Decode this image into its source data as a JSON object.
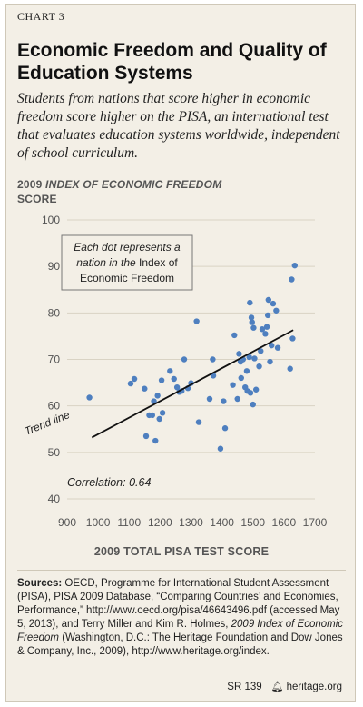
{
  "header": {
    "chart_label": "CHART 3",
    "title": "Economic Freedom and Quality of Education Systems",
    "subtitle": "Students from nations that score higher in economic freedom score higher on the PISA, an international test that evaluates education systems worldwide, independent of school curriculum."
  },
  "axis": {
    "ytitle_prefix": "2009",
    "ytitle_italic": "INDEX OF ECONOMIC FREEDOM",
    "ytitle_suffix": "SCORE",
    "xtitle": "2009 TOTAL PISA TEST SCORE"
  },
  "annotation": {
    "note_line1": "Each dot represents a",
    "note_line2a": "nation in the ",
    "note_line2b": "Index of",
    "note_line3": "Economic Freedom",
    "trend_label": "Trend line",
    "correlation": "Correlation: 0.64"
  },
  "chart_data": {
    "type": "scatter",
    "xlim": [
      900,
      1700
    ],
    "ylim": [
      40,
      100
    ],
    "x_ticks": [
      900,
      1000,
      1100,
      1200,
      1300,
      1400,
      1500,
      1600,
      1700
    ],
    "y_ticks": [
      40,
      50,
      60,
      70,
      80,
      90,
      100
    ],
    "grid": "horizontal",
    "trend_line": [
      [
        980,
        53.2
      ],
      [
        1630,
        76.3
      ]
    ],
    "points": [
      [
        972,
        61.8
      ],
      [
        1105,
        64.8
      ],
      [
        1117,
        65.8
      ],
      [
        1150,
        63.7
      ],
      [
        1155,
        53.5
      ],
      [
        1165,
        58.0
      ],
      [
        1175,
        58.0
      ],
      [
        1180,
        61.0
      ],
      [
        1185,
        52.5
      ],
      [
        1192,
        62.2
      ],
      [
        1198,
        57.2
      ],
      [
        1205,
        65.5
      ],
      [
        1208,
        58.5
      ],
      [
        1232,
        67.5
      ],
      [
        1245,
        65.8
      ],
      [
        1255,
        64.0
      ],
      [
        1262,
        63.0
      ],
      [
        1270,
        63.2
      ],
      [
        1278,
        70.0
      ],
      [
        1290,
        63.8
      ],
      [
        1300,
        64.9
      ],
      [
        1318,
        78.2
      ],
      [
        1325,
        56.5
      ],
      [
        1360,
        61.5
      ],
      [
        1370,
        70.0
      ],
      [
        1372,
        66.5
      ],
      [
        1395,
        50.8
      ],
      [
        1405,
        61.0
      ],
      [
        1410,
        55.2
      ],
      [
        1435,
        64.5
      ],
      [
        1440,
        75.2
      ],
      [
        1450,
        61.5
      ],
      [
        1455,
        71.2
      ],
      [
        1460,
        69.5
      ],
      [
        1462,
        66.0
      ],
      [
        1468,
        70.0
      ],
      [
        1475,
        64.0
      ],
      [
        1480,
        67.5
      ],
      [
        1482,
        63.2
      ],
      [
        1488,
        70.5
      ],
      [
        1490,
        82.2
      ],
      [
        1492,
        62.8
      ],
      [
        1495,
        79.0
      ],
      [
        1497,
        78.0
      ],
      [
        1500,
        60.3
      ],
      [
        1502,
        76.8
      ],
      [
        1505,
        70.2
      ],
      [
        1510,
        63.5
      ],
      [
        1520,
        68.5
      ],
      [
        1525,
        71.8
      ],
      [
        1530,
        76.5
      ],
      [
        1540,
        75.5
      ],
      [
        1545,
        77.0
      ],
      [
        1548,
        79.5
      ],
      [
        1550,
        82.8
      ],
      [
        1555,
        69.5
      ],
      [
        1560,
        73.0
      ],
      [
        1565,
        82.0
      ],
      [
        1575,
        80.5
      ],
      [
        1580,
        72.5
      ],
      [
        1620,
        68.0
      ],
      [
        1625,
        87.2
      ],
      [
        1628,
        74.5
      ],
      [
        1635,
        90.2
      ]
    ]
  },
  "sources": {
    "label": "Sources:",
    "text1": " OECD, Programme for International Student Assessment (PISA), PISA 2009 Database, “Comparing Countries’ and Economies, Performance,” http://www.oecd.org/pisa/46643496.pdf (accessed May 5, 2013), and Terry Miller and Kim R. Holmes, ",
    "italic": "2009 Index of Economic Freedom",
    "text2": " (Washington, D.C.: The Heritage Foundation and Dow Jones & Company, Inc., 2009), http://www.heritage.org/index."
  },
  "footer": {
    "report": "SR 139",
    "site": "heritage.org"
  },
  "colors": {
    "dot": "#4e7fbf",
    "panel": "#f3efe6",
    "grid": "#d9d3c4"
  }
}
